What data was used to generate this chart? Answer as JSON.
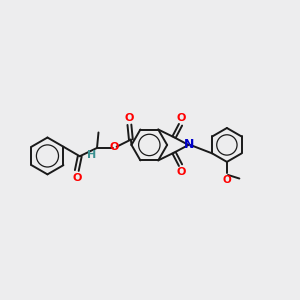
{
  "bg_color": "#ededee",
  "bond_color": "#1a1a1a",
  "O_color": "#ff0000",
  "N_color": "#0000cc",
  "H_color": "#3a9090",
  "figsize": [
    3.0,
    3.0
  ],
  "dpi": 100,
  "xlim": [
    0,
    10
  ],
  "ylim": [
    2,
    8.5
  ]
}
